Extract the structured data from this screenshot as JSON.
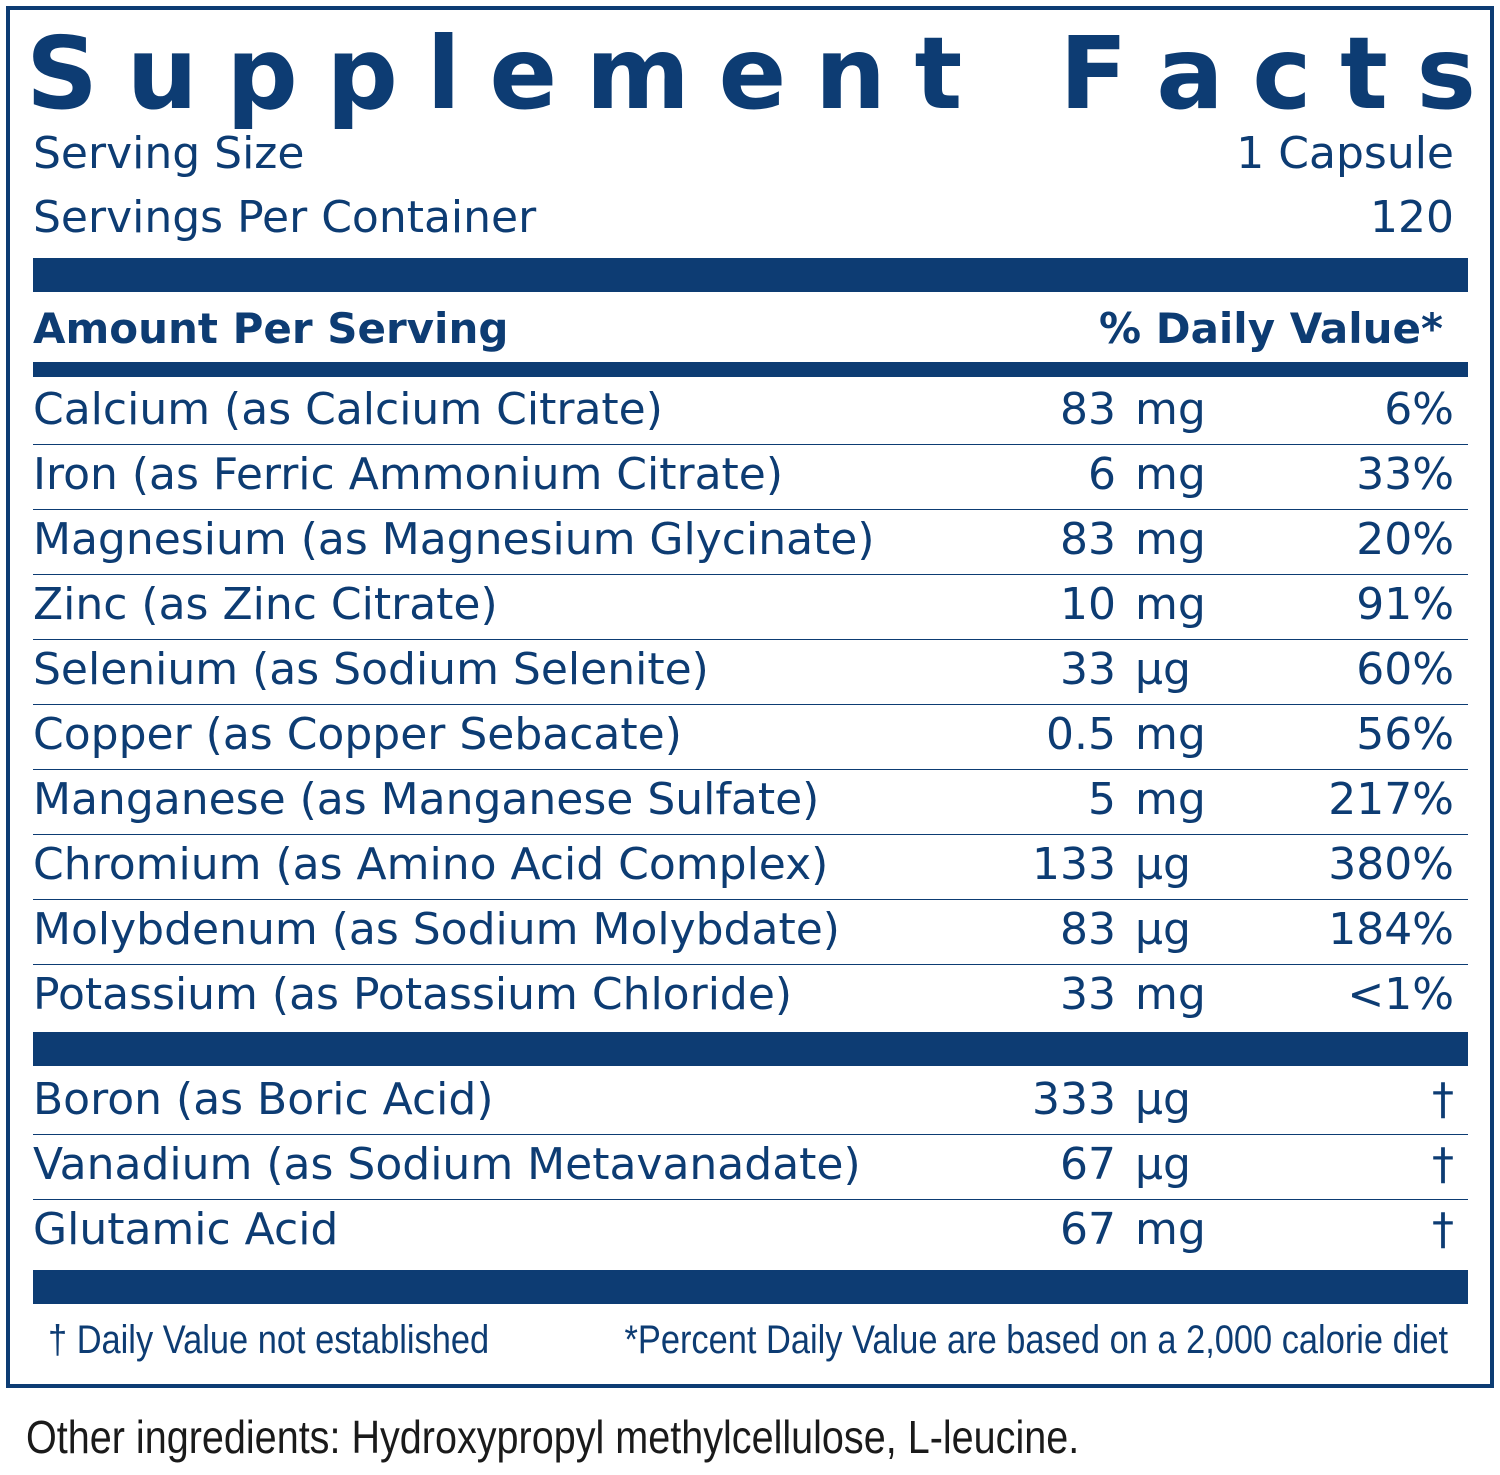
{
  "title_letters": [
    "S",
    "u",
    "p",
    "p",
    "l",
    "e",
    "m",
    "e",
    "n",
    "t",
    "",
    "F",
    "a",
    "c",
    "t",
    "s"
  ],
  "serving": {
    "size_label": "Serving Size",
    "size_value": "1 Capsule",
    "per_container_label": "Servings Per Container",
    "per_container_value": "120"
  },
  "header": {
    "amount_label": "Amount Per Serving",
    "dv_label": "% Daily Value*"
  },
  "nutrients": [
    {
      "name": "Calcium (as Calcium Citrate)",
      "amount": "83",
      "unit": "mg",
      "dv": "6%"
    },
    {
      "name": "Iron (as Ferric Ammonium Citrate)",
      "amount": "6",
      "unit": "mg",
      "dv": "33%"
    },
    {
      "name": "Magnesium (as Magnesium Glycinate)",
      "amount": "83",
      "unit": "mg",
      "dv": "20%"
    },
    {
      "name": "Zinc (as Zinc Citrate)",
      "amount": "10",
      "unit": "mg",
      "dv": "91%"
    },
    {
      "name": "Selenium (as Sodium Selenite)",
      "amount": "33",
      "unit": "µg",
      "dv": "60%"
    },
    {
      "name": "Copper (as Copper Sebacate)",
      "amount": "0.5",
      "unit": "mg",
      "dv": "56%"
    },
    {
      "name": "Manganese (as Manganese Sulfate)",
      "amount": "5",
      "unit": "mg",
      "dv": "217%"
    },
    {
      "name": "Chromium (as Amino Acid Complex)",
      "amount": "133",
      "unit": "µg",
      "dv": "380%"
    },
    {
      "name": "Molybdenum (as Sodium Molybdate)",
      "amount": "83",
      "unit": "µg",
      "dv": "184%"
    },
    {
      "name": "Potassium (as Potassium Chloride)",
      "amount": "33",
      "unit": "mg",
      "dv": "<1%"
    }
  ],
  "other_nutrients": [
    {
      "name": "Boron (as Boric Acid)",
      "amount": "333",
      "unit": "µg",
      "dv": "†"
    },
    {
      "name": "Vanadium (as Sodium Metavanadate)",
      "amount": "67",
      "unit": "µg",
      "dv": "†"
    },
    {
      "name": "Glutamic Acid",
      "amount": "67",
      "unit": "mg",
      "dv": "†"
    }
  ],
  "footnotes": {
    "dagger": "† Daily Value not established",
    "percent": "*Percent Daily Value are based on a 2,000 calorie diet"
  },
  "other_ingredients": "Other ingredients: Hydroxypropyl methylcellulose, L-leucine.",
  "colors": {
    "primary": "#0d3c73"
  }
}
